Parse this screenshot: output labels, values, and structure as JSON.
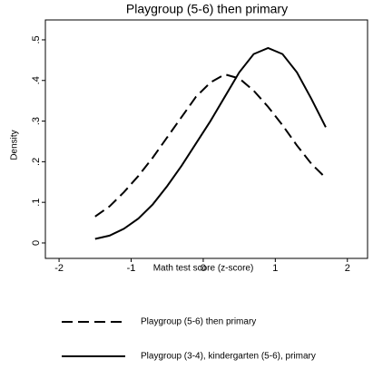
{
  "chart_data": {
    "type": "line",
    "title": "Playgroup (5-6) then primary",
    "x_label": "Math test score (z-score)",
    "y_label": "Density",
    "x": [
      -1.5,
      -1.3,
      -1.1,
      -0.9,
      -0.7,
      -0.5,
      -0.3,
      -0.1,
      0.1,
      0.3,
      0.5,
      0.7,
      0.9,
      1.1,
      1.3,
      1.5,
      1.7
    ],
    "series": [
      {
        "name": "Playgroup (5-6) then primary",
        "color": "#000000",
        "style": "dashed",
        "values": [
          0.065,
          0.09,
          0.125,
          0.165,
          0.21,
          0.26,
          0.31,
          0.36,
          0.395,
          0.415,
          0.405,
          0.375,
          0.335,
          0.29,
          0.24,
          0.195,
          0.16
        ]
      },
      {
        "name": "Playgroup (3-4), kindergarten (5-6), primary",
        "color": "#000000",
        "style": "solid",
        "values": [
          0.01,
          0.018,
          0.035,
          0.06,
          0.095,
          0.14,
          0.19,
          0.245,
          0.3,
          0.36,
          0.42,
          0.465,
          0.48,
          0.465,
          0.42,
          0.355,
          0.285
        ]
      }
    ],
    "xlim": [
      -2.19,
      2.28
    ],
    "xticks": [
      -2,
      -1,
      0,
      1,
      2
    ],
    "ylim": [
      -0.038,
      0.549
    ],
    "yticks": [
      0,
      {
        "value": 0.1,
        "label": ".1"
      },
      {
        "value": 0.2,
        "label": ".2"
      },
      {
        "value": 0.3,
        "label": ".3"
      },
      {
        "value": 0.4,
        "label": ".4"
      },
      {
        "value": 0.5,
        "label": ".5"
      }
    ],
    "grid": false,
    "legend": "bottom"
  }
}
